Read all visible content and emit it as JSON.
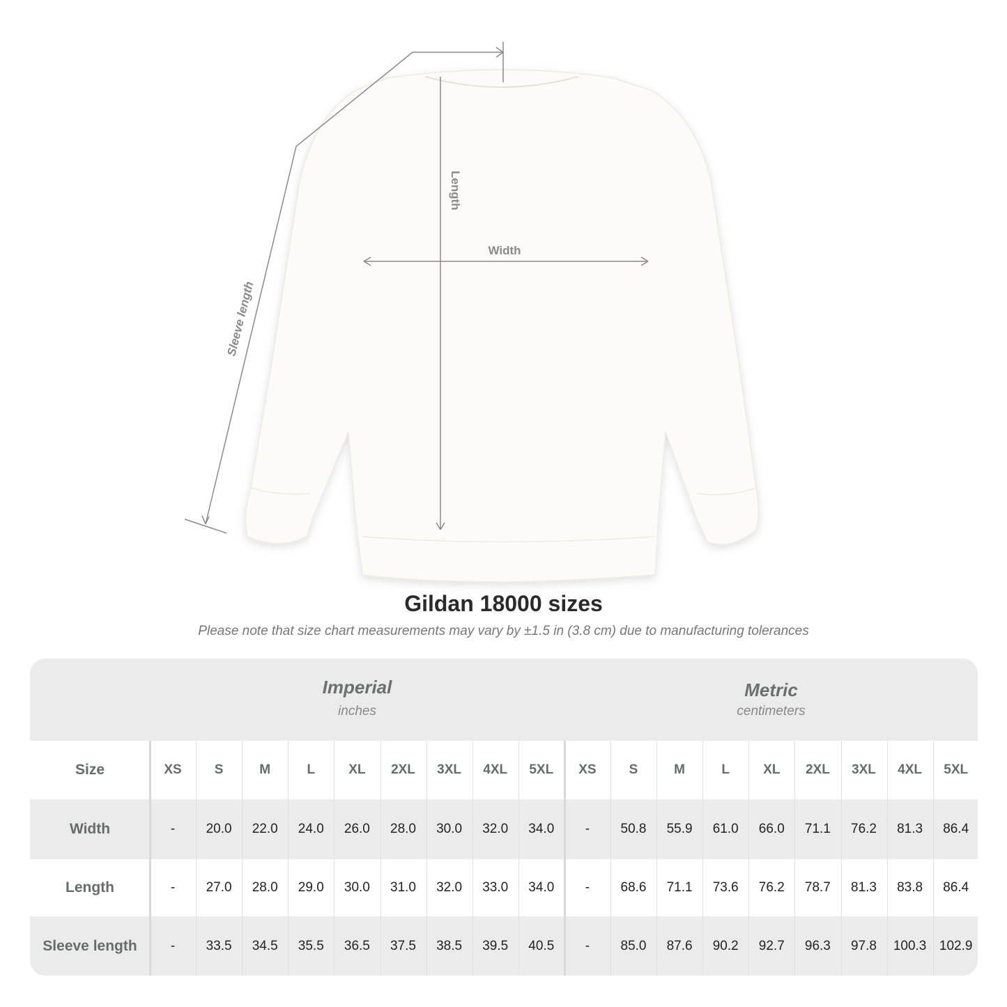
{
  "diagram": {
    "labels": {
      "length": "Length",
      "width": "Width",
      "sleeve": "Sleeve length"
    },
    "line_color": "#8a8a8a"
  },
  "title": "Gildan 18000 sizes",
  "note": "Please note that size chart measurements may vary by ±1.5 in (3.8 cm) due to manufacturing tolerances",
  "table": {
    "imperial": {
      "name": "Imperial",
      "unit": "inches"
    },
    "metric": {
      "name": "Metric",
      "unit": "centimeters"
    },
    "size_label": "Size",
    "sizes": [
      "XS",
      "S",
      "M",
      "L",
      "XL",
      "2XL",
      "3XL",
      "4XL",
      "5XL"
    ],
    "rows": [
      {
        "label": "Width",
        "imperial": [
          "-",
          "20.0",
          "22.0",
          "24.0",
          "26.0",
          "28.0",
          "30.0",
          "32.0",
          "34.0"
        ],
        "metric": [
          "-",
          "50.8",
          "55.9",
          "61.0",
          "66.0",
          "71.1",
          "76.2",
          "81.3",
          "86.4"
        ]
      },
      {
        "label": "Length",
        "imperial": [
          "-",
          "27.0",
          "28.0",
          "29.0",
          "30.0",
          "31.0",
          "32.0",
          "33.0",
          "34.0"
        ],
        "metric": [
          "-",
          "68.6",
          "71.1",
          "73.6",
          "76.2",
          "78.7",
          "81.3",
          "83.8",
          "86.4"
        ]
      },
      {
        "label": "Sleeve length",
        "imperial": [
          "-",
          "33.5",
          "34.5",
          "35.5",
          "36.5",
          "37.5",
          "38.5",
          "39.5",
          "40.5"
        ],
        "metric": [
          "-",
          "85.0",
          "87.6",
          "90.2",
          "92.7",
          "96.3",
          "97.8",
          "100.3",
          "102.9"
        ]
      }
    ],
    "colors": {
      "band": "#ebebeb",
      "text": "#222222",
      "label": "#666b6c"
    }
  }
}
